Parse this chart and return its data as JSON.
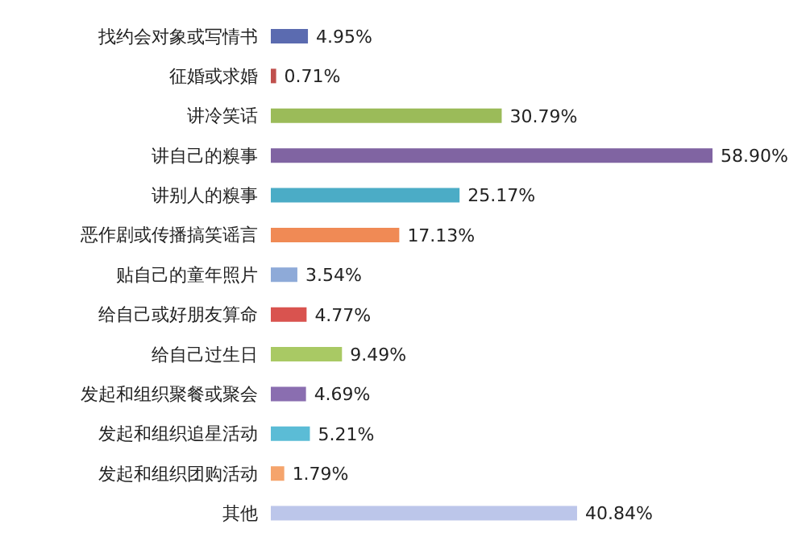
{
  "chart_data": {
    "type": "bar",
    "orientation": "horizontal",
    "tick_labels": "y",
    "categories": [
      "找约会对象或写情书",
      "征婚或求婚",
      "讲冷笑话",
      "讲自己的糗事",
      "讲别人的糗事",
      "恶作剧或传播搞笑谣言",
      "贴自己的童年照片",
      "给自己或好朋友算命",
      "给自己过生日",
      "发起和组织聚餐或聚会",
      "发起和组织追星活动",
      "发起和组织团购活动",
      "其他"
    ],
    "values": [
      4.95,
      0.71,
      30.79,
      58.9,
      25.17,
      17.13,
      3.54,
      4.77,
      9.49,
      4.69,
      5.21,
      1.79,
      40.84
    ],
    "value_labels": [
      "4.95%",
      "0.71%",
      "30.79%",
      "58.90%",
      "25.17%",
      "17.13%",
      "3.54%",
      "4.77%",
      "9.49%",
      "4.69%",
      "5.21%",
      "1.79%",
      "40.84%"
    ],
    "colors": [
      "#5b6bb0",
      "#c0504d",
      "#9bbb59",
      "#8064a2",
      "#4bacc6",
      "#f08a55",
      "#8eaad8",
      "#d9534f",
      "#a9c964",
      "#8a6eb0",
      "#5bbcd6",
      "#f5a46c",
      "#bcc6ea"
    ]
  }
}
